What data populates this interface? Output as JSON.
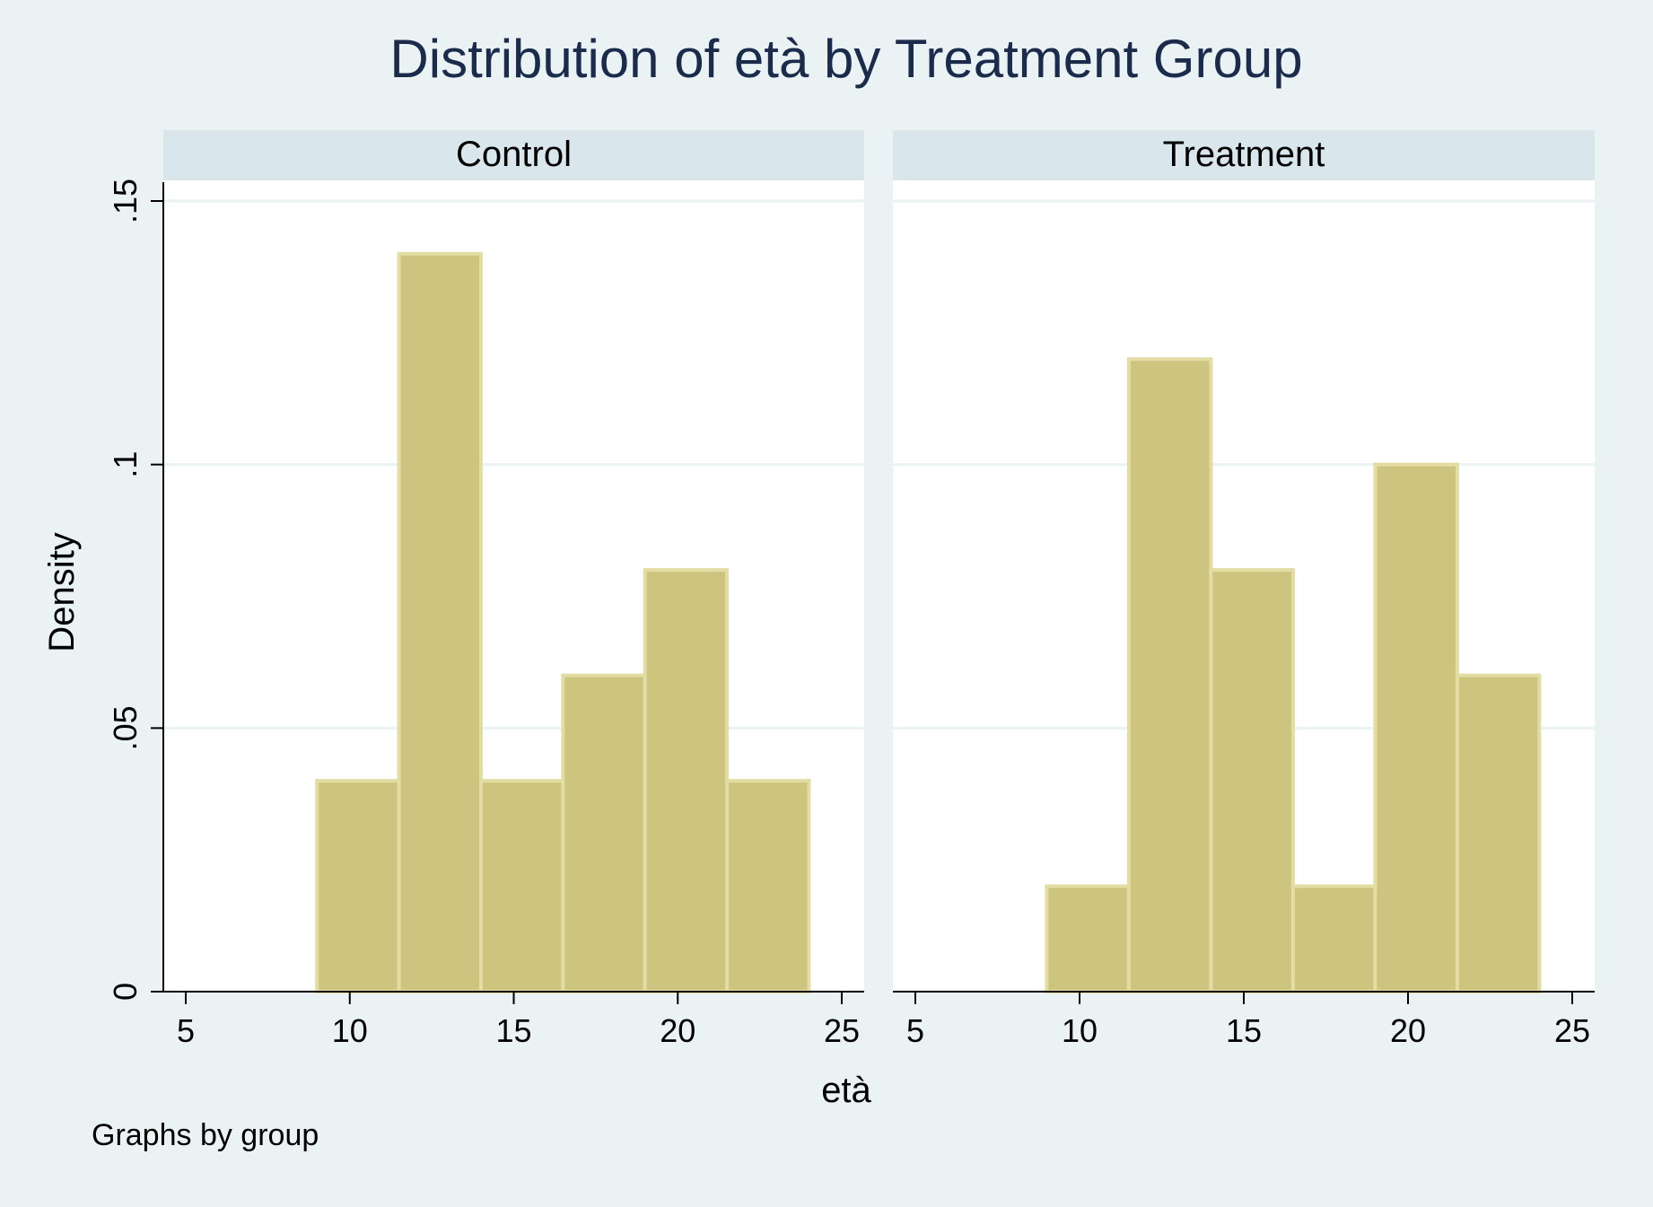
{
  "chart_data": {
    "type": "bar",
    "title": "Distribution of età by Treatment Group",
    "xlabel": "età",
    "ylabel": "Density",
    "note": "Graphs by group",
    "xlim": [
      5,
      25
    ],
    "ylim": [
      0,
      0.15
    ],
    "xticks": [
      5,
      10,
      15,
      20,
      25
    ],
    "xtick_labels": [
      "5",
      "10",
      "15",
      "20",
      "25"
    ],
    "yticks": [
      0,
      0.05,
      0.1,
      0.15
    ],
    "ytick_labels": [
      "0",
      ".05",
      ".1",
      ".15"
    ],
    "grid": true,
    "colors": {
      "background": "#eaf2f3",
      "plot_background": "#ffffff",
      "strip": "#d9e6eb",
      "bar_fill": "#cdc47f",
      "bar_edge": "#e3dca3",
      "gridline": "#eaf2f3",
      "title": "#1a2b4c",
      "text": "#000000"
    },
    "panels": [
      {
        "label": "Control",
        "bins": [
          {
            "start": 9,
            "end": 11.5,
            "density": 0.04
          },
          {
            "start": 11.5,
            "end": 14,
            "density": 0.14
          },
          {
            "start": 14,
            "end": 16.5,
            "density": 0.04
          },
          {
            "start": 16.5,
            "end": 19,
            "density": 0.06
          },
          {
            "start": 19,
            "end": 21.5,
            "density": 0.08
          },
          {
            "start": 21.5,
            "end": 24,
            "density": 0.04
          }
        ]
      },
      {
        "label": "Treatment",
        "bins": [
          {
            "start": 9,
            "end": 11.5,
            "density": 0.02
          },
          {
            "start": 11.5,
            "end": 14,
            "density": 0.12
          },
          {
            "start": 14,
            "end": 16.5,
            "density": 0.08
          },
          {
            "start": 16.5,
            "end": 19,
            "density": 0.02
          },
          {
            "start": 19,
            "end": 21.5,
            "density": 0.1
          },
          {
            "start": 21.5,
            "end": 24,
            "density": 0.06
          }
        ]
      }
    ]
  }
}
